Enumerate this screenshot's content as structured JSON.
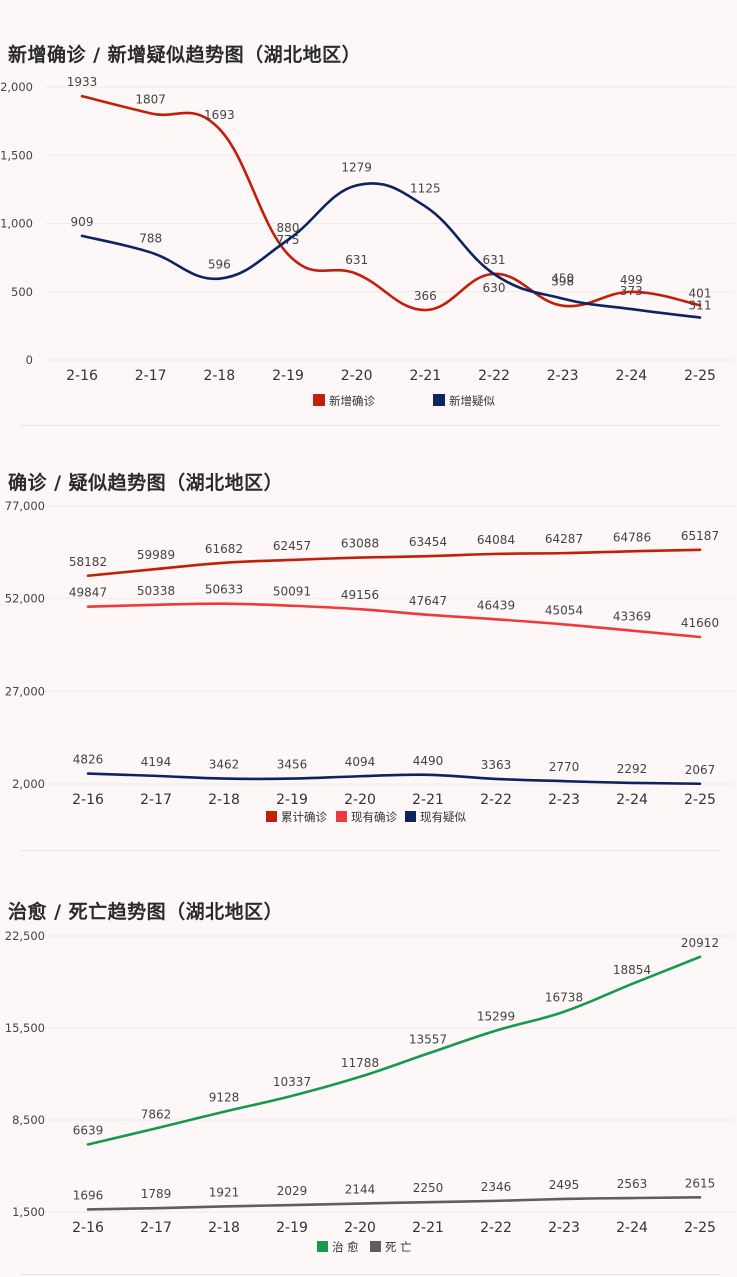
{
  "categories": [
    "2-16",
    "2-17",
    "2-18",
    "2-19",
    "2-20",
    "2-21",
    "2-22",
    "2-23",
    "2-24",
    "2-25"
  ],
  "chart_data": [
    {
      "type": "line",
      "title": "新增确诊 / 新增疑似趋势图（湖北地区）",
      "categories": [
        "2-16",
        "2-17",
        "2-18",
        "2-19",
        "2-20",
        "2-21",
        "2-22",
        "2-23",
        "2-24",
        "2-25"
      ],
      "series": [
        {
          "name": "新增确诊",
          "color": "#c21f0b",
          "values": [
            1933,
            1807,
            1693,
            775,
            631,
            366,
            631,
            398,
            499,
            401
          ]
        },
        {
          "name": "新增疑似",
          "color": "#0d2460",
          "values": [
            909,
            788,
            596,
            880,
            1279,
            1125,
            630,
            450,
            373,
            311
          ]
        }
      ],
      "yticks": [
        "2,000",
        "1,500",
        "1,000",
        "500",
        "0"
      ],
      "ylim": [
        0,
        2000
      ],
      "grid": true,
      "legend": "bottom"
    },
    {
      "type": "line",
      "title": "确诊 / 疑似趋势图（湖北地区）",
      "categories": [
        "2-16",
        "2-17",
        "2-18",
        "2-19",
        "2-20",
        "2-21",
        "2-22",
        "2-23",
        "2-24",
        "2-25"
      ],
      "series": [
        {
          "name": "累计确诊",
          "color": "#c21f0b",
          "values": [
            58182,
            59989,
            61682,
            62457,
            63088,
            63454,
            64084,
            64287,
            64786,
            65187
          ]
        },
        {
          "name": "现有确诊",
          "color": "#ee3a3a",
          "values": [
            49847,
            50338,
            50633,
            50091,
            49156,
            47647,
            46439,
            45054,
            43369,
            41660
          ]
        },
        {
          "name": "现有疑似",
          "color": "#0d2460",
          "values": [
            4826,
            4194,
            3462,
            3456,
            4094,
            4490,
            3363,
            2770,
            2292,
            2067
          ]
        }
      ],
      "yticks": [
        "77,000",
        "52,000",
        "27,000",
        "2,000"
      ],
      "ylim": [
        2000,
        77000
      ],
      "grid": true,
      "legend": "bottom"
    },
    {
      "type": "line",
      "title": "治愈 / 死亡趋势图（湖北地区）",
      "categories": [
        "2-16",
        "2-17",
        "2-18",
        "2-19",
        "2-20",
        "2-21",
        "2-22",
        "2-23",
        "2-24",
        "2-25"
      ],
      "series": [
        {
          "name": "治 愈",
          "color": "#169a4c",
          "values": [
            6639,
            7862,
            9128,
            10337,
            11788,
            13557,
            15299,
            16738,
            18854,
            20912
          ]
        },
        {
          "name": "死 亡",
          "color": "#5e5e5e",
          "values": [
            1696,
            1789,
            1921,
            2029,
            2144,
            2250,
            2346,
            2495,
            2563,
            2615
          ]
        }
      ],
      "yticks": [
        "22,500",
        "15,500",
        "8,500",
        "1,500"
      ],
      "ylim": [
        1500,
        22500
      ],
      "grid": true,
      "legend": "bottom"
    }
  ]
}
